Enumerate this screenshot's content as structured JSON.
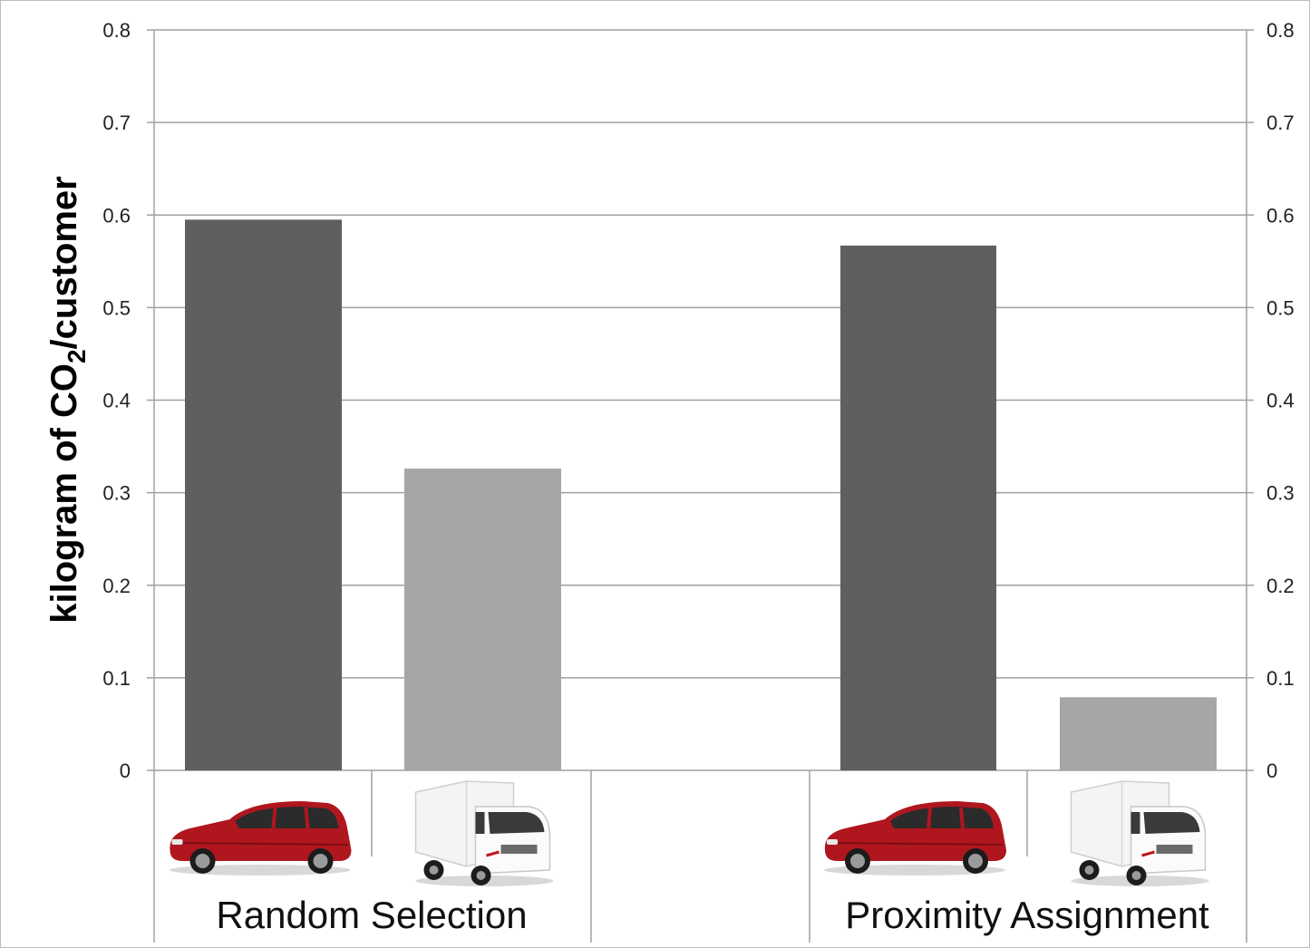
{
  "chart_data": {
    "type": "bar",
    "ylabel": "kilogram of CO2/customer",
    "ylabel_parts": {
      "pre": "kilogram of CO",
      "sub": "2",
      "post": "/customer"
    },
    "ylim": [
      0,
      0.8
    ],
    "yticks": [
      "0",
      "0.1",
      "0.2",
      "0.3",
      "0.4",
      "0.5",
      "0.6",
      "0.7",
      "0.8"
    ],
    "secondary_axis": true,
    "grid": true,
    "groups": [
      {
        "label": "Random Selection",
        "bars": [
          {
            "vehicle": "car-icon",
            "value": 0.595,
            "color": "#5f5f5f"
          },
          {
            "vehicle": "truck-icon",
            "value": 0.326,
            "color": "#a6a6a6"
          }
        ]
      },
      {
        "label": "Proximity Assignment",
        "bars": [
          {
            "vehicle": "car-icon",
            "value": 0.567,
            "color": "#5f5f5f"
          },
          {
            "vehicle": "truck-icon",
            "value": 0.079,
            "color": "#a6a6a6"
          }
        ]
      }
    ]
  }
}
